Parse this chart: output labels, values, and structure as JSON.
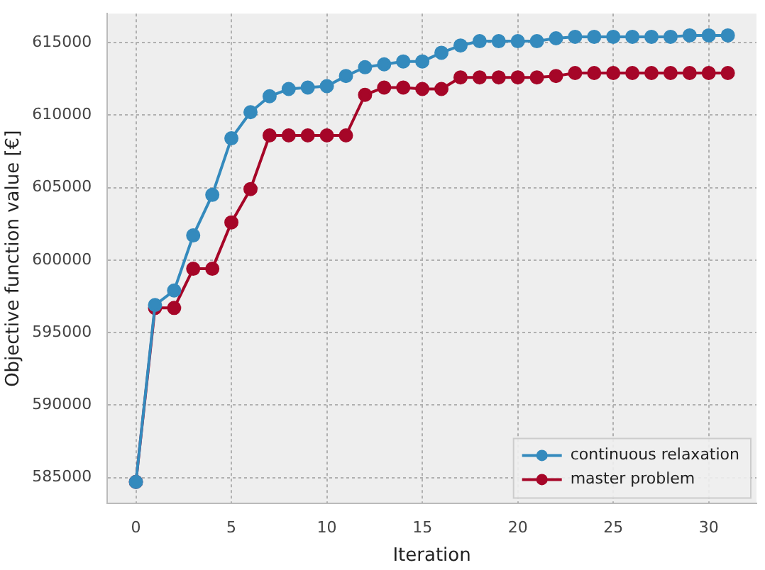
{
  "chart_data": {
    "type": "line",
    "xlabel": "Iteration",
    "ylabel": "Objective function value [€]",
    "x": [
      0,
      1,
      2,
      3,
      4,
      5,
      6,
      7,
      8,
      9,
      10,
      11,
      12,
      13,
      14,
      15,
      16,
      17,
      18,
      19,
      20,
      21,
      22,
      23,
      24,
      25,
      26,
      27,
      28,
      29,
      30,
      31
    ],
    "series": [
      {
        "name": "continuous relaxation",
        "color": "#348abd",
        "values": [
          584700,
          596900,
          597900,
          601700,
          604500,
          608400,
          610200,
          611300,
          611800,
          611900,
          612000,
          612700,
          613300,
          613500,
          613700,
          613700,
          614300,
          614800,
          615100,
          615100,
          615100,
          615100,
          615300,
          615400,
          615400,
          615400,
          615400,
          615400,
          615400,
          615500,
          615500,
          615500
        ]
      },
      {
        "name": "master problem",
        "color": "#a60628",
        "values": [
          584700,
          596700,
          596700,
          599400,
          599400,
          602600,
          604900,
          608600,
          608600,
          608600,
          608600,
          608600,
          611400,
          611900,
          611900,
          611800,
          611800,
          612600,
          612600,
          612600,
          612600,
          612600,
          612700,
          612900,
          612900,
          612900,
          612900,
          612900,
          612900,
          612900,
          612900,
          612900
        ]
      }
    ],
    "xlim": [
      -1.5,
      32.5
    ],
    "xticks": [
      0,
      5,
      10,
      15,
      20,
      25,
      30
    ],
    "ylim": [
      583200,
      617000
    ],
    "yticks": [
      585000,
      590000,
      595000,
      600000,
      605000,
      610000,
      615000
    ],
    "grid": true,
    "legend": "bottom right",
    "marker": "circle",
    "line_style": "solid"
  }
}
